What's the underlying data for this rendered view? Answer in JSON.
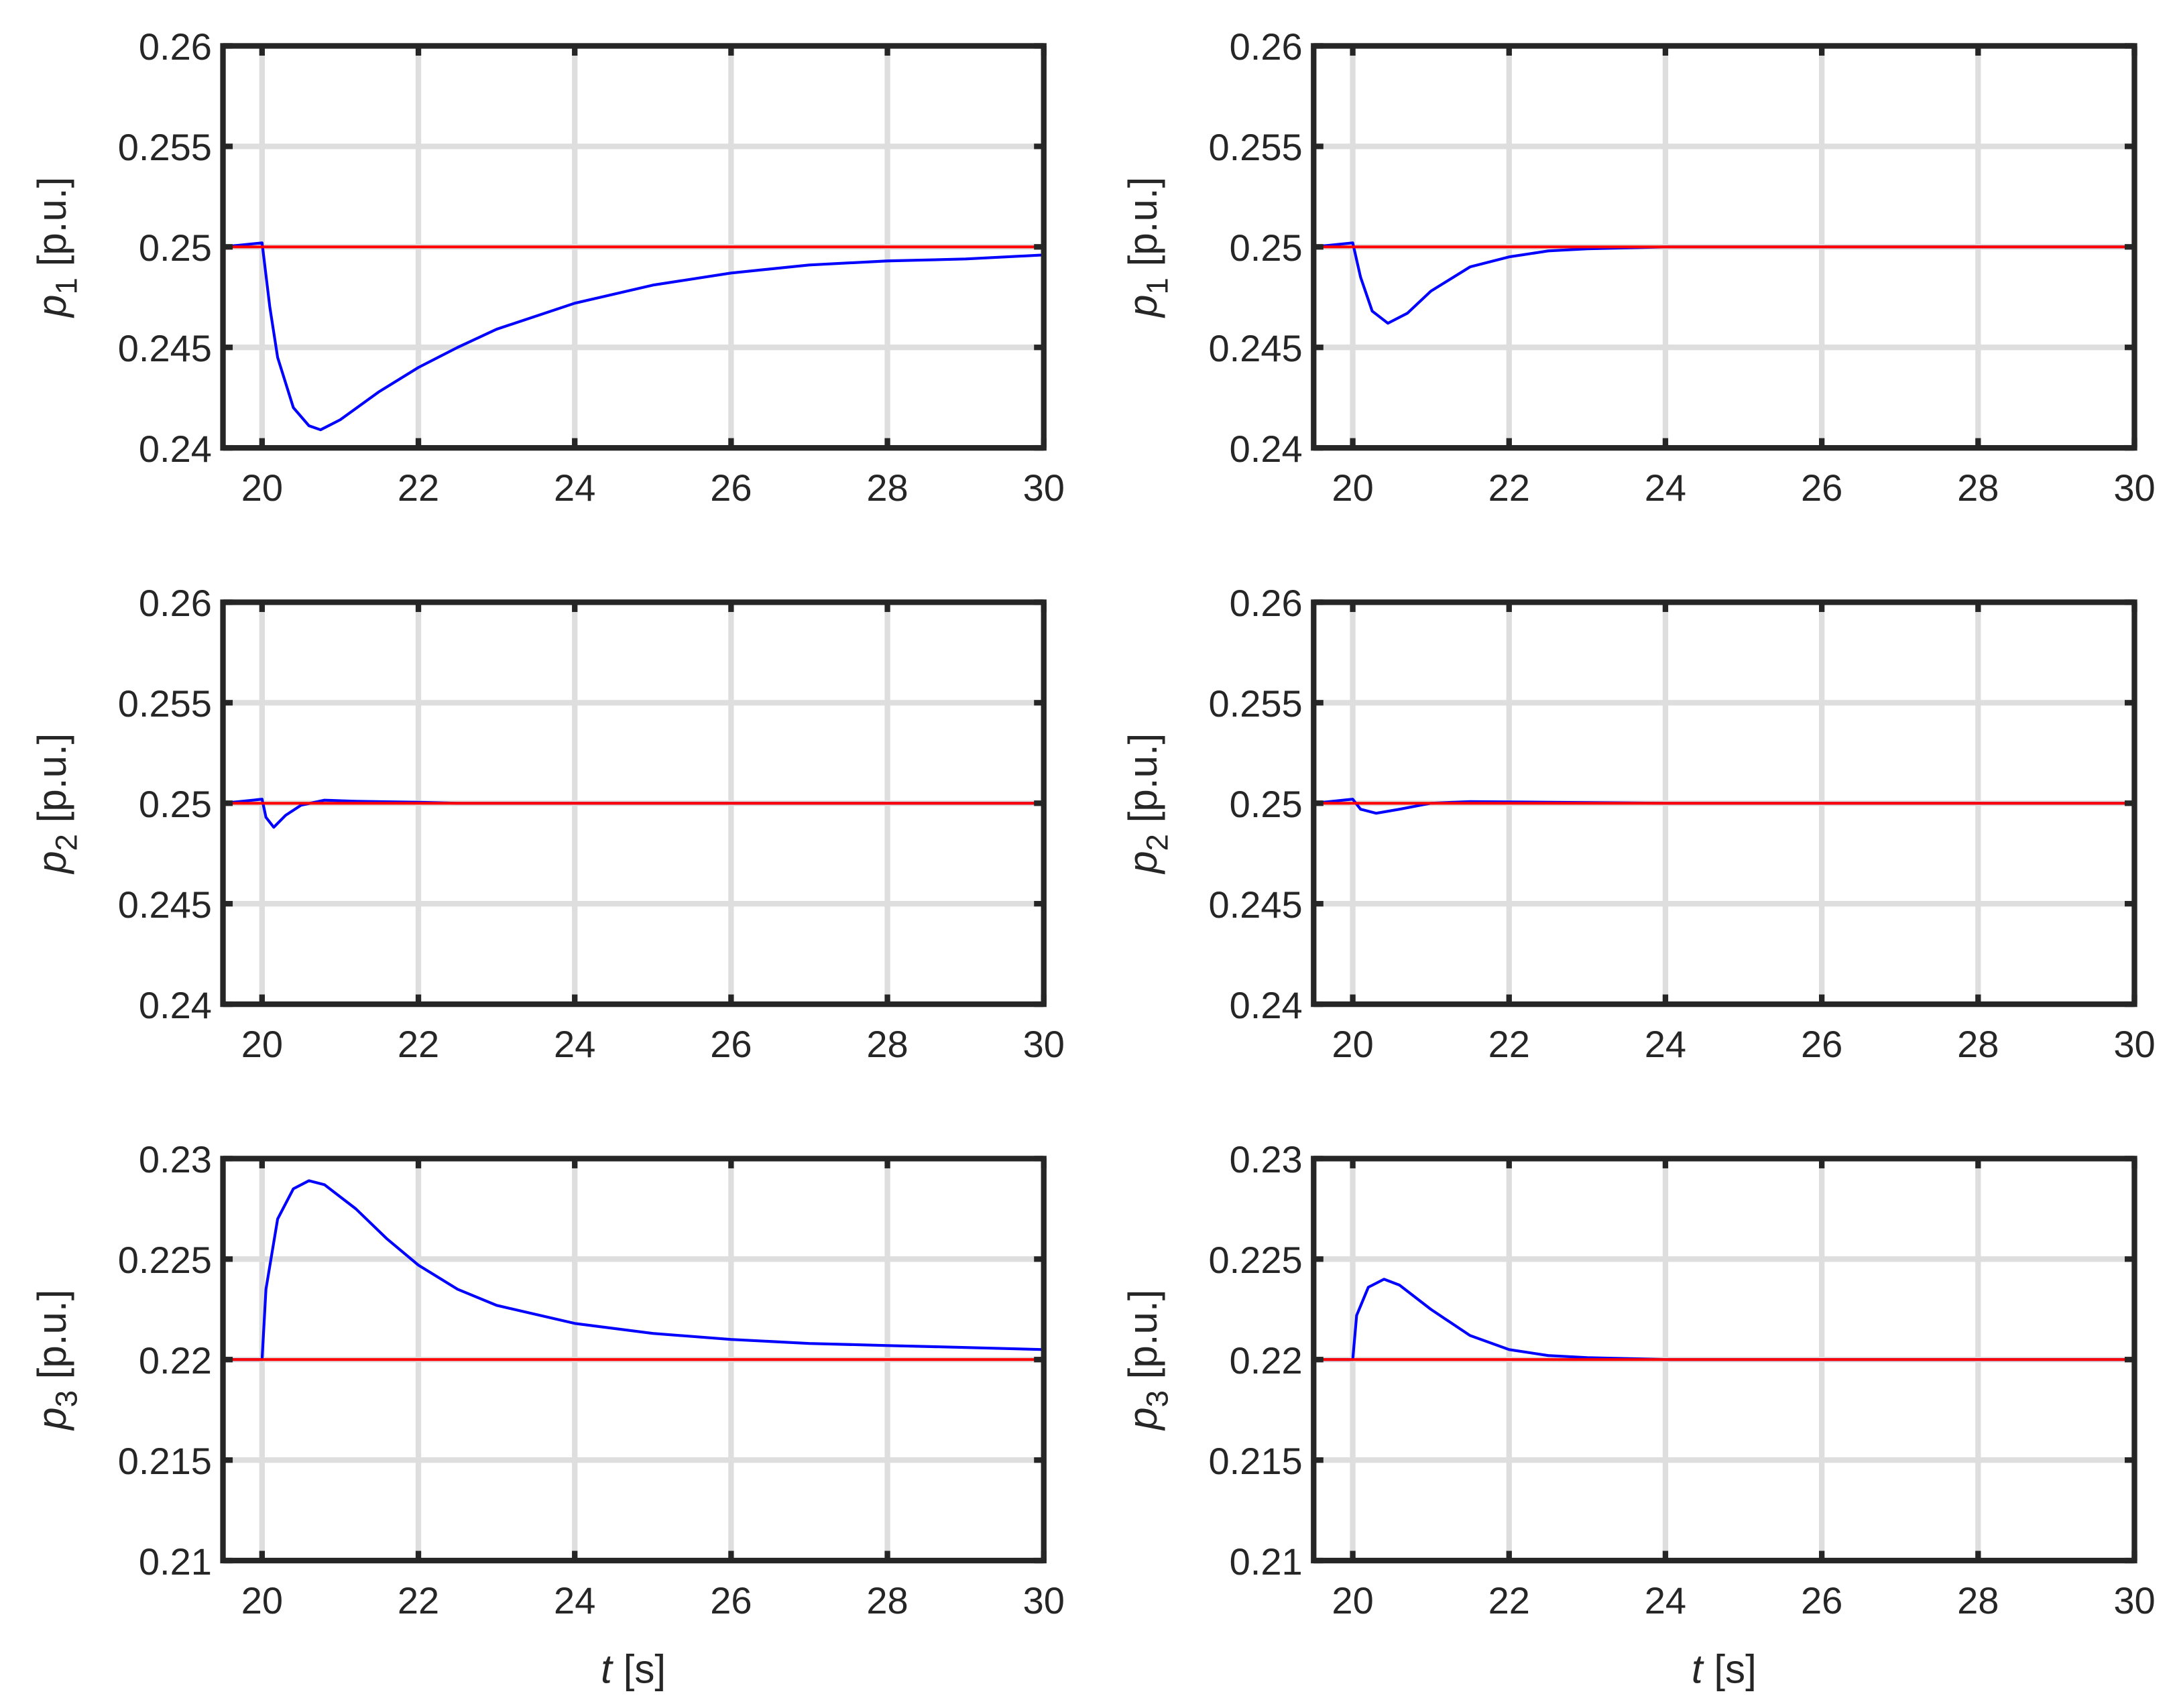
{
  "chart_data": [
    {
      "type": "line",
      "panel": "top-left",
      "xlim": [
        19.5,
        30
      ],
      "ylim": [
        0.24,
        0.26
      ],
      "xticks": [
        "20",
        "22",
        "24",
        "26",
        "28",
        "30"
      ],
      "yticks": [
        "0.24",
        "0.245",
        "0.25",
        "0.255",
        "0.26"
      ],
      "ylabel": {
        "var": "p",
        "sub": "1",
        "unit": "[p.u.]"
      },
      "xlabel": null,
      "grid": true,
      "series": [
        {
          "color": "#0000ff",
          "x": [
            19.5,
            20,
            20.1,
            20.2,
            20.4,
            20.6,
            20.75,
            21,
            21.5,
            22,
            22.5,
            23,
            24,
            25,
            26,
            27,
            28,
            29,
            30
          ],
          "y": [
            0.25,
            0.2502,
            0.247,
            0.2445,
            0.242,
            0.2411,
            0.2409,
            0.2414,
            0.2428,
            0.244,
            0.245,
            0.2459,
            0.2472,
            0.2481,
            0.2487,
            0.2491,
            0.2493,
            0.2494,
            0.2496
          ]
        },
        {
          "color": "#ff0000",
          "x": [
            19.5,
            30
          ],
          "y": [
            0.25,
            0.25
          ]
        }
      ]
    },
    {
      "type": "line",
      "panel": "top-right",
      "xlim": [
        19.5,
        30
      ],
      "ylim": [
        0.24,
        0.26
      ],
      "xticks": [
        "20",
        "22",
        "24",
        "26",
        "28",
        "30"
      ],
      "yticks": [
        "0.24",
        "0.245",
        "0.25",
        "0.255",
        "0.26"
      ],
      "ylabel": {
        "var": "p",
        "sub": "1",
        "unit": "[p.u.]"
      },
      "xlabel": null,
      "grid": true,
      "series": [
        {
          "color": "#0000ff",
          "x": [
            19.5,
            20,
            20.1,
            20.25,
            20.45,
            20.7,
            21,
            21.5,
            22,
            22.5,
            23,
            24,
            30
          ],
          "y": [
            0.25,
            0.2502,
            0.2485,
            0.2468,
            0.2462,
            0.2467,
            0.2478,
            0.249,
            0.2495,
            0.2498,
            0.2499,
            0.25,
            0.25
          ]
        },
        {
          "color": "#ff0000",
          "x": [
            19.5,
            30
          ],
          "y": [
            0.25,
            0.25
          ]
        }
      ]
    },
    {
      "type": "line",
      "panel": "middle-left",
      "xlim": [
        19.5,
        30
      ],
      "ylim": [
        0.24,
        0.26
      ],
      "xticks": [
        "20",
        "22",
        "24",
        "26",
        "28",
        "30"
      ],
      "yticks": [
        "0.24",
        "0.245",
        "0.25",
        "0.255",
        "0.26"
      ],
      "ylabel": {
        "var": "p",
        "sub": "2",
        "unit": "[p.u.]"
      },
      "xlabel": null,
      "grid": true,
      "series": [
        {
          "color": "#0000ff",
          "x": [
            19.5,
            20,
            20.05,
            20.15,
            20.3,
            20.5,
            20.8,
            21.2,
            22,
            22.5,
            30
          ],
          "y": [
            0.25,
            0.2502,
            0.2493,
            0.2488,
            0.2494,
            0.2499,
            0.25015,
            0.2501,
            0.25005,
            0.25,
            0.25
          ]
        },
        {
          "color": "#ff0000",
          "x": [
            19.5,
            30
          ],
          "y": [
            0.25,
            0.25
          ]
        }
      ]
    },
    {
      "type": "line",
      "panel": "middle-right",
      "xlim": [
        19.5,
        30
      ],
      "ylim": [
        0.24,
        0.26
      ],
      "xticks": [
        "20",
        "22",
        "24",
        "26",
        "28",
        "30"
      ],
      "yticks": [
        "0.24",
        "0.245",
        "0.25",
        "0.255",
        "0.26"
      ],
      "ylabel": {
        "var": "p",
        "sub": "2",
        "unit": "[p.u.]"
      },
      "xlabel": null,
      "grid": true,
      "series": [
        {
          "color": "#0000ff",
          "x": [
            19.5,
            20,
            20.1,
            20.3,
            20.6,
            21,
            21.5,
            22.5,
            24,
            30
          ],
          "y": [
            0.25,
            0.2502,
            0.2497,
            0.2495,
            0.2497,
            0.25,
            0.25008,
            0.25005,
            0.25,
            0.25
          ]
        },
        {
          "color": "#ff0000",
          "x": [
            19.5,
            30
          ],
          "y": [
            0.25,
            0.25
          ]
        }
      ]
    },
    {
      "type": "line",
      "panel": "bottom-left",
      "xlim": [
        19.5,
        30
      ],
      "ylim": [
        0.21,
        0.23
      ],
      "xticks": [
        "20",
        "22",
        "24",
        "26",
        "28",
        "30"
      ],
      "yticks": [
        "0.21",
        "0.215",
        "0.22",
        "0.225",
        "0.23"
      ],
      "ylabel": {
        "var": "p",
        "sub": "3",
        "unit": "[p.u.]"
      },
      "xlabel": {
        "var": "t",
        "unit": "[s]"
      },
      "grid": true,
      "series": [
        {
          "color": "#0000ff",
          "x": [
            19.5,
            20,
            20.05,
            20.2,
            20.4,
            20.6,
            20.8,
            21.2,
            21.6,
            22,
            22.5,
            23,
            24,
            25,
            26,
            27,
            28,
            29,
            30
          ],
          "y": [
            0.22,
            0.22,
            0.2235,
            0.227,
            0.2285,
            0.2289,
            0.2287,
            0.2275,
            0.226,
            0.2247,
            0.2235,
            0.2227,
            0.2218,
            0.2213,
            0.221,
            0.2208,
            0.2207,
            0.2206,
            0.2205
          ]
        },
        {
          "color": "#ff0000",
          "x": [
            19.5,
            30
          ],
          "y": [
            0.22,
            0.22
          ]
        }
      ]
    },
    {
      "type": "line",
      "panel": "bottom-right",
      "xlim": [
        19.5,
        30
      ],
      "ylim": [
        0.21,
        0.23
      ],
      "xticks": [
        "20",
        "22",
        "24",
        "26",
        "28",
        "30"
      ],
      "yticks": [
        "0.21",
        "0.215",
        "0.22",
        "0.225",
        "0.23"
      ],
      "ylabel": {
        "var": "p",
        "sub": "3",
        "unit": "[p.u.]"
      },
      "xlabel": {
        "var": "t",
        "unit": "[s]"
      },
      "grid": true,
      "series": [
        {
          "color": "#0000ff",
          "x": [
            19.5,
            20,
            20.05,
            20.2,
            20.4,
            20.6,
            21,
            21.5,
            22,
            22.5,
            23,
            24,
            30
          ],
          "y": [
            0.22,
            0.22,
            0.2222,
            0.2236,
            0.224,
            0.2237,
            0.2225,
            0.2212,
            0.2205,
            0.2202,
            0.2201,
            0.22,
            0.22
          ]
        },
        {
          "color": "#ff0000",
          "x": [
            19.5,
            30
          ],
          "y": [
            0.22,
            0.22
          ]
        }
      ]
    }
  ]
}
